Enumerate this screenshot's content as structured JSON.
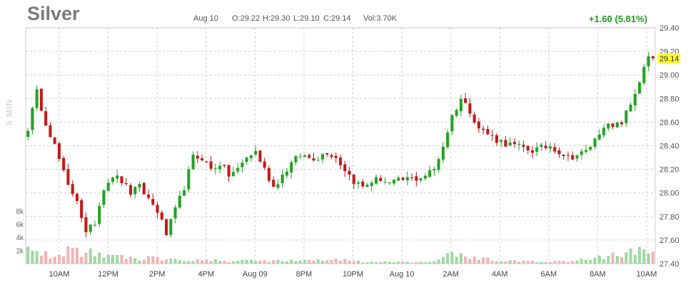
{
  "header": {
    "symbol": "Silver",
    "date": "Aug 10",
    "open": "O:29.22",
    "high": "H:29.30",
    "low": "L:29.10",
    "close": "C:29.14",
    "volume": "Vol:3.70K",
    "change": "+1.60 (5.81%)",
    "interval": "5 MIN"
  },
  "colors": {
    "up": "#22a322",
    "down": "#c41a1a",
    "up_volume": "#9fd99f",
    "down_volume": "#f2b3b3",
    "grid": "#d0d0d0",
    "price_tag": "#ffff33",
    "change_text": "#1a9e1a"
  },
  "chart_data": {
    "type": "candlestick",
    "title": "Silver",
    "x_tick_labels": [
      "10AM",
      "12PM",
      "2PM",
      "4PM",
      "Aug 09",
      "8PM",
      "10PM",
      "Aug 10",
      "2AM",
      "4AM",
      "6AM",
      "8AM",
      "10AM"
    ],
    "y_tick_labels": [
      "29.40",
      "29.20",
      "29.00",
      "28.80",
      "28.60",
      "28.40",
      "28.20",
      "28.00",
      "27.80",
      "27.60",
      "27.40"
    ],
    "ylim": [
      27.4,
      29.4
    ],
    "volume_tick_labels": [
      "8k",
      "6k",
      "4k",
      "2k"
    ],
    "volume_range": [
      0,
      8000
    ],
    "last_price": "29.14",
    "grid": true,
    "price_path": [
      [
        0,
        28.55
      ],
      [
        2,
        28.85
      ],
      [
        4,
        28.6
      ],
      [
        6,
        28.4
      ],
      [
        9,
        28.05
      ],
      [
        11,
        27.95
      ],
      [
        13,
        27.65
      ],
      [
        15,
        27.75
      ],
      [
        17,
        28.05
      ],
      [
        19,
        28.15
      ],
      [
        21,
        28.1
      ],
      [
        23,
        28.0
      ],
      [
        25,
        28.05
      ],
      [
        27,
        27.95
      ],
      [
        29,
        27.85
      ],
      [
        31,
        27.65
      ],
      [
        33,
        27.85
      ],
      [
        35,
        28.05
      ],
      [
        37,
        28.3
      ],
      [
        39,
        28.3
      ],
      [
        41,
        28.2
      ],
      [
        43,
        28.25
      ],
      [
        45,
        28.15
      ],
      [
        47,
        28.2
      ],
      [
        49,
        28.3
      ],
      [
        51,
        28.35
      ],
      [
        53,
        28.2
      ],
      [
        55,
        28.05
      ],
      [
        57,
        28.15
      ],
      [
        59,
        28.25
      ],
      [
        61,
        28.32
      ],
      [
        63,
        28.3
      ],
      [
        65,
        28.3
      ],
      [
        67,
        28.35
      ],
      [
        69,
        28.3
      ],
      [
        71,
        28.2
      ],
      [
        73,
        28.1
      ],
      [
        75,
        28.05
      ],
      [
        77,
        28.1
      ],
      [
        79,
        28.12
      ],
      [
        81,
        28.08
      ],
      [
        83,
        28.1
      ],
      [
        85,
        28.12
      ],
      [
        87,
        28.12
      ],
      [
        89,
        28.15
      ],
      [
        91,
        28.2
      ],
      [
        93,
        28.4
      ],
      [
        95,
        28.65
      ],
      [
        97,
        28.8
      ],
      [
        99,
        28.7
      ],
      [
        101,
        28.55
      ],
      [
        103,
        28.5
      ],
      [
        105,
        28.45
      ],
      [
        107,
        28.42
      ],
      [
        109,
        28.4
      ],
      [
        111,
        28.38
      ],
      [
        113,
        28.36
      ],
      [
        115,
        28.38
      ],
      [
        117,
        28.4
      ],
      [
        119,
        28.35
      ],
      [
        121,
        28.3
      ],
      [
        123,
        28.32
      ],
      [
        125,
        28.35
      ],
      [
        127,
        28.45
      ],
      [
        129,
        28.58
      ],
      [
        131,
        28.55
      ],
      [
        133,
        28.6
      ],
      [
        135,
        28.75
      ],
      [
        137,
        28.95
      ],
      [
        139,
        29.15
      ],
      [
        140,
        29.14
      ]
    ],
    "volume_profile": [
      [
        0,
        1800
      ],
      [
        5,
        1200
      ],
      [
        10,
        2300
      ],
      [
        15,
        1500
      ],
      [
        20,
        1000
      ],
      [
        25,
        800
      ],
      [
        30,
        900
      ],
      [
        35,
        700
      ],
      [
        40,
        500
      ],
      [
        45,
        400
      ],
      [
        50,
        500
      ],
      [
        55,
        500
      ],
      [
        60,
        400
      ],
      [
        65,
        600
      ],
      [
        70,
        600
      ],
      [
        75,
        300
      ],
      [
        80,
        250
      ],
      [
        85,
        200
      ],
      [
        90,
        200
      ],
      [
        93,
        1000
      ],
      [
        96,
        1500
      ],
      [
        100,
        800
      ],
      [
        105,
        500
      ],
      [
        110,
        350
      ],
      [
        115,
        300
      ],
      [
        120,
        300
      ],
      [
        125,
        600
      ],
      [
        130,
        1200
      ],
      [
        135,
        1700
      ],
      [
        140,
        2600
      ]
    ]
  }
}
